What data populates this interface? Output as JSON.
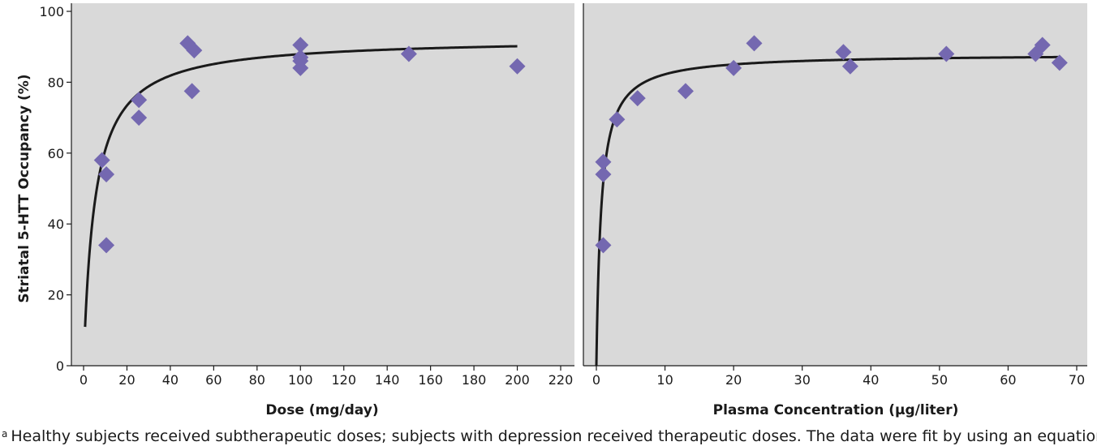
{
  "chart_data": [
    {
      "type": "scatter",
      "title": "",
      "xlabel": "Dose (mg/day)",
      "ylabel": "Striatal 5-HTT Occupancy (%)",
      "xlim": [
        0,
        220
      ],
      "ylim": [
        0,
        100
      ],
      "x_ticks": [
        "0",
        "20",
        "40",
        "60",
        "80",
        "100",
        "120",
        "140",
        "160",
        "180",
        "200",
        "220"
      ],
      "y_ticks": [
        "0",
        "20",
        "40",
        "60",
        "80",
        "100"
      ],
      "grid": false,
      "background": "#d9d9d9",
      "marker_color": "#7468b0",
      "curve_color": "#1a1a1a",
      "points": [
        {
          "x": 8.5,
          "y": 58
        },
        {
          "x": 10.5,
          "y": 54
        },
        {
          "x": 10.5,
          "y": 34
        },
        {
          "x": 25.5,
          "y": 75
        },
        {
          "x": 25.5,
          "y": 70
        },
        {
          "x": 48,
          "y": 91
        },
        {
          "x": 51,
          "y": 89
        },
        {
          "x": 50,
          "y": 77.5
        },
        {
          "x": 100,
          "y": 90.5
        },
        {
          "x": 100,
          "y": 87
        },
        {
          "x": 100,
          "y": 86
        },
        {
          "x": 100,
          "y": 84
        },
        {
          "x": 150,
          "y": 88
        },
        {
          "x": 200,
          "y": 84.5
        }
      ],
      "fit": {
        "model": "Emax",
        "emax": 92.5,
        "ed50": 5.2,
        "x_range": [
          0.7,
          200
        ]
      }
    },
    {
      "type": "scatter",
      "title": "",
      "xlabel": "Plasma Concentration (µg/liter)",
      "ylabel": "",
      "xlim": [
        -2,
        71
      ],
      "ylim": [
        0,
        100
      ],
      "x_ticks": [
        "0",
        "10",
        "20",
        "30",
        "40",
        "50",
        "60",
        "70"
      ],
      "y_ticks": [],
      "grid": false,
      "background": "#d9d9d9",
      "marker_color": "#7468b0",
      "curve_color": "#1a1a1a",
      "points": [
        {
          "x": 1.0,
          "y": 57.5
        },
        {
          "x": 1.0,
          "y": 54
        },
        {
          "x": 1.0,
          "y": 34
        },
        {
          "x": 3.0,
          "y": 69.5
        },
        {
          "x": 6.0,
          "y": 75.5
        },
        {
          "x": 13.0,
          "y": 77.5
        },
        {
          "x": 20.0,
          "y": 84
        },
        {
          "x": 23.0,
          "y": 91
        },
        {
          "x": 36.0,
          "y": 88.5
        },
        {
          "x": 37.0,
          "y": 84.5
        },
        {
          "x": 51.0,
          "y": 88
        },
        {
          "x": 64.0,
          "y": 88
        },
        {
          "x": 65.0,
          "y": 90.5
        },
        {
          "x": 67.5,
          "y": 85.5
        }
      ],
      "fit": {
        "model": "Emax",
        "emax": 88.0,
        "ec50": 0.7,
        "x_range": [
          0.0,
          67.5
        ]
      }
    }
  ],
  "footnote": {
    "marker": "a",
    "text": "Healthy subjects received subtherapeutic doses; subjects with depression received therapeutic doses. The data were fit by using an equation"
  }
}
